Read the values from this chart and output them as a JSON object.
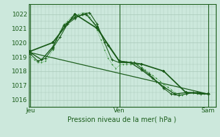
{
  "bg_color": "#cce8dc",
  "grid_color": "#a8c8b8",
  "line_color_dark": "#1a5c1a",
  "line_color_mid": "#2d8c2d",
  "title": "Pression niveau de la mer( hPa )",
  "xtick_labels": [
    "Jeu",
    "Ven",
    "Sam"
  ],
  "xtick_positions": [
    0,
    24,
    48
  ],
  "ylim": [
    1015.5,
    1022.7
  ],
  "yticks": [
    1016,
    1017,
    1018,
    1019,
    1020,
    1021,
    1022
  ],
  "xlim": [
    -0.5,
    50
  ],
  "series1_x": [
    0,
    1,
    2,
    3,
    4,
    5,
    6,
    7,
    8,
    9,
    10,
    11,
    12,
    13,
    14,
    15,
    16,
    17,
    18,
    19,
    20,
    21,
    22,
    23,
    24,
    25,
    26,
    27,
    28,
    29,
    30,
    31,
    32,
    33,
    34,
    35,
    36,
    37,
    38,
    39,
    40,
    41,
    42,
    43,
    44,
    45,
    46,
    47,
    48
  ],
  "series1_y": [
    1019.0,
    1018.8,
    1018.6,
    1018.6,
    1018.7,
    1019.0,
    1019.5,
    1020.2,
    1020.8,
    1021.3,
    1021.5,
    1021.8,
    1021.9,
    1022.0,
    1022.1,
    1022.1,
    1021.8,
    1021.4,
    1020.9,
    1020.2,
    1019.5,
    1018.9,
    1018.5,
    1018.2,
    1018.4,
    1018.5,
    1018.5,
    1018.5,
    1018.5,
    1018.5,
    1018.3,
    1018.1,
    1017.9,
    1017.7,
    1017.5,
    1017.3,
    1017.1,
    1016.9,
    1016.7,
    1016.5,
    1016.4,
    1016.3,
    1016.5,
    1016.5,
    1016.5,
    1016.4,
    1016.4,
    1016.4,
    1016.4
  ],
  "series2_x": [
    0,
    2,
    4,
    6,
    8,
    10,
    12,
    14,
    16,
    18,
    20,
    22,
    24,
    26,
    28,
    30,
    32,
    34,
    36,
    38,
    40,
    42,
    44,
    46,
    48
  ],
  "series2_y": [
    1019.2,
    1018.7,
    1018.9,
    1019.6,
    1020.4,
    1021.3,
    1021.7,
    1022.0,
    1022.1,
    1021.3,
    1020.0,
    1018.8,
    1018.6,
    1018.6,
    1018.6,
    1018.2,
    1017.8,
    1017.3,
    1016.8,
    1016.4,
    1016.3,
    1016.4,
    1016.5,
    1016.4,
    1016.4
  ],
  "series3_x": [
    0,
    3,
    6,
    9,
    12,
    15,
    18,
    21,
    24,
    27,
    30,
    33,
    36,
    39,
    42,
    45,
    48
  ],
  "series3_y": [
    1019.3,
    1018.8,
    1019.7,
    1021.2,
    1021.8,
    1022.0,
    1021.1,
    1019.8,
    1018.7,
    1018.6,
    1018.1,
    1017.5,
    1016.9,
    1016.4,
    1016.5,
    1016.5,
    1016.4
  ],
  "series4_x": [
    0,
    6,
    12,
    18,
    24,
    30,
    36,
    42,
    48
  ],
  "series4_y": [
    1019.4,
    1020.0,
    1022.0,
    1021.0,
    1018.7,
    1018.5,
    1018.0,
    1016.5,
    1016.4
  ],
  "series5_x": [
    0,
    48
  ],
  "series5_y": [
    1019.3,
    1016.4
  ]
}
